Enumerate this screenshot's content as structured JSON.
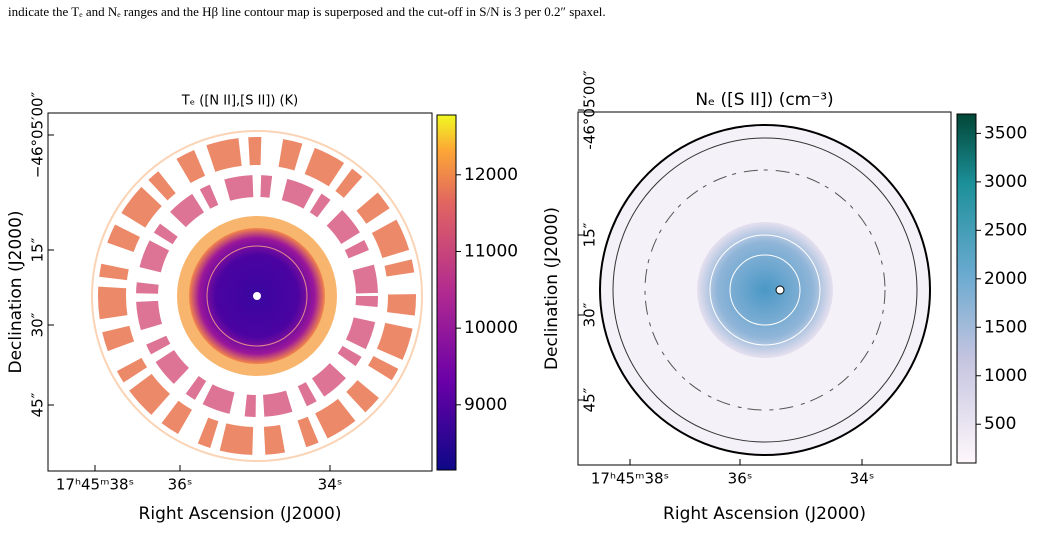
{
  "caption": "indicate the Tₑ and Nₑ ranges and the Hβ line contour map is superposed and the cut-off in S/N is 3 per 0.2″ spaxel.",
  "panels": [
    {
      "title": "Tₑ ([N II],[S II]) (K)",
      "xlabel": "Right Ascension (J2000)",
      "ylabel": "Declination (J2000)",
      "xtick_labels": [
        "17ʰ45ᵐ38ˢ",
        "36ˢ",
        "34ˢ"
      ],
      "ytick_labels": [
        "−46°05′00″",
        "15″",
        "30″",
        "45″"
      ],
      "colorbar": {
        "lim": [
          8150,
          12780
        ],
        "ticks": [
          9000,
          10000,
          11000,
          12000
        ]
      }
    },
    {
      "title": "Nₑ ([S II]) (cm⁻³)",
      "xlabel": "Right Ascension (J2000)",
      "ylabel": "Declination (J2000)",
      "xtick_labels": [
        "17ʰ45ᵐ38ˢ",
        "36ˢ",
        "34ˢ"
      ],
      "ytick_labels": [
        "-46°05′00″",
        "15″",
        "30″",
        "45″"
      ],
      "colorbar": {
        "lim": [
          100,
          3700
        ],
        "ticks": [
          500,
          1000,
          1500,
          2000,
          2500,
          3000,
          3500
        ]
      }
    }
  ]
}
